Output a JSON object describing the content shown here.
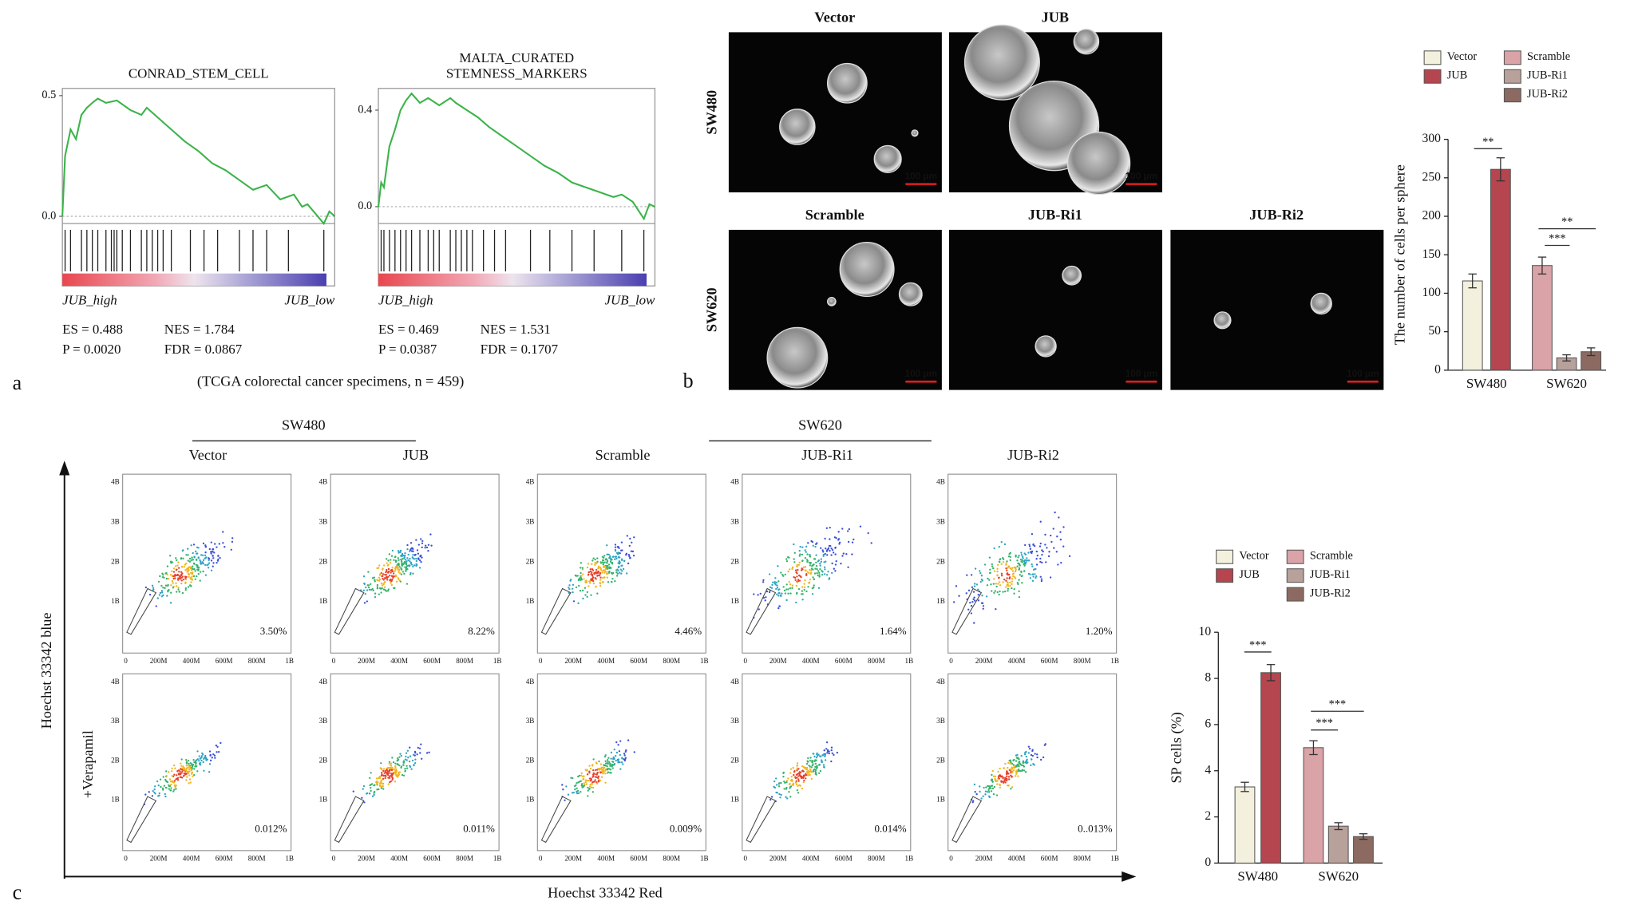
{
  "panel_labels": [
    "a",
    "b",
    "c"
  ],
  "gsea_footnote": "(TCGA colorectal cancer specimens, n = 459)",
  "chart_data": [
    {
      "type": "line",
      "title": [
        "CONRAD_STEM_CELL"
      ],
      "color": "#3cb34a",
      "x": [
        0,
        1,
        3,
        5,
        7,
        9,
        11,
        13,
        16,
        20,
        25,
        29,
        31,
        35,
        40,
        45,
        50,
        55,
        60,
        65,
        70,
        75,
        80,
        85,
        88,
        90,
        93,
        96,
        98,
        100
      ],
      "series": [
        {
          "values": [
            0,
            0.25,
            0.36,
            0.32,
            0.42,
            0.45,
            0.47,
            0.488,
            0.47,
            0.48,
            0.44,
            0.42,
            0.45,
            0.41,
            0.36,
            0.31,
            0.27,
            0.22,
            0.19,
            0.15,
            0.11,
            0.13,
            0.07,
            0.09,
            0.04,
            0.05,
            0.01,
            -0.03,
            0.02,
            0
          ]
        }
      ],
      "hits": [
        1,
        3,
        7,
        9,
        11,
        13,
        16,
        18,
        19,
        20,
        22,
        25,
        29,
        31,
        33,
        35,
        37,
        40,
        47,
        52,
        57,
        65,
        70,
        75,
        83,
        96
      ],
      "xlim": [
        0,
        100
      ],
      "ylim": [
        -0.03,
        0.53
      ],
      "yticks": [
        0.5,
        {
          "value": 0,
          "label": "0.0"
        }
      ],
      "x_labels": [
        "JUB_high",
        "JUB_low"
      ],
      "stats": [
        "ES = 0.488",
        "NES = 1.784",
        "P = 0.0020",
        "FDR = 0.0867"
      ]
    },
    {
      "type": "line",
      "title": [
        "MALTA_CURATED",
        "STEMNESS_MARKERS"
      ],
      "color": "#3cb34a",
      "x": [
        0,
        1,
        2,
        4,
        6,
        8,
        10,
        12,
        15,
        18,
        22,
        26,
        28,
        32,
        36,
        40,
        45,
        50,
        55,
        60,
        65,
        70,
        75,
        80,
        85,
        88,
        92,
        96,
        98,
        100
      ],
      "series": [
        {
          "values": [
            0,
            0.1,
            0.08,
            0.25,
            0.32,
            0.4,
            0.44,
            0.469,
            0.43,
            0.45,
            0.42,
            0.45,
            0.43,
            0.4,
            0.37,
            0.33,
            0.29,
            0.25,
            0.21,
            0.17,
            0.14,
            0.1,
            0.08,
            0.06,
            0.04,
            0.05,
            0.02,
            -0.05,
            0.01,
            0
          ]
        }
      ],
      "hits": [
        1,
        2,
        4,
        6,
        8,
        10,
        12,
        15,
        18,
        20,
        22,
        26,
        28,
        30,
        32,
        34,
        38,
        42,
        46,
        55,
        62,
        70,
        78,
        88,
        96
      ],
      "xlim": [
        0,
        100
      ],
      "ylim": [
        -0.07,
        0.49
      ],
      "yticks": [
        0.4,
        {
          "value": 0,
          "label": "0.0"
        }
      ],
      "x_labels": [
        "JUB_high",
        "JUB_low"
      ],
      "stats": [
        "ES = 0.469",
        "NES = 1.531",
        "P = 0.0387",
        "FDR = 0.1707"
      ]
    },
    {
      "type": "bar",
      "y_label": "The number of cells per sphere",
      "categories": [
        "SW480",
        "SW620"
      ],
      "ylim": [
        0,
        300
      ],
      "yticks": [
        0,
        50,
        100,
        150,
        200,
        250,
        300
      ],
      "series": [
        {
          "name": "Vector",
          "color": "#f3f0de",
          "values": [
            116,
            null
          ],
          "errors": [
            9,
            null
          ]
        },
        {
          "name": "JUB",
          "color": "#b5454f",
          "values": [
            261,
            null
          ],
          "errors": [
            15,
            null
          ]
        },
        {
          "name": "Scramble",
          "color": "#d9a3a7",
          "values": [
            null,
            136
          ],
          "errors": [
            null,
            11
          ]
        },
        {
          "name": "JUB-Ri1",
          "color": "#b8a09b",
          "values": [
            null,
            16
          ],
          "errors": [
            null,
            4
          ]
        },
        {
          "name": "JUB-Ri2",
          "color": "#8c6a62",
          "values": [
            null,
            24
          ],
          "errors": [
            null,
            5
          ]
        }
      ],
      "annotations": [
        "**",
        "***",
        "**"
      ]
    },
    {
      "type": "bar",
      "y_label": "SP cells (%)",
      "categories": [
        "SW480",
        "SW620"
      ],
      "ylim": [
        0,
        10
      ],
      "yticks": [
        0,
        2,
        4,
        6,
        8,
        10
      ],
      "series": [
        {
          "name": "Vector",
          "color": "#f3f0de",
          "values": [
            3.3,
            null
          ],
          "errors": [
            0.2,
            null
          ]
        },
        {
          "name": "JUB",
          "color": "#b5454f",
          "values": [
            8.25,
            null
          ],
          "errors": [
            0.35,
            null
          ]
        },
        {
          "name": "Scramble",
          "color": "#d9a3a7",
          "values": [
            null,
            5.0
          ],
          "errors": [
            null,
            0.3
          ]
        },
        {
          "name": "JUB-Ri1",
          "color": "#b8a09b",
          "values": [
            null,
            1.6
          ],
          "errors": [
            null,
            0.15
          ]
        },
        {
          "name": "JUB-Ri2",
          "color": "#8c6a62",
          "values": [
            null,
            1.15
          ],
          "errors": [
            null,
            0.12
          ]
        }
      ],
      "annotations": [
        "***",
        "***",
        "***"
      ]
    }
  ],
  "spheres": {
    "rows": [
      "SW480",
      "SW620"
    ],
    "top_titles": [
      "Vector",
      "JUB"
    ],
    "bottom_titles": [
      "Scramble",
      "JUB-Ri1",
      "JUB-Ri2"
    ],
    "scale_bar": "100 μm"
  },
  "flow": {
    "groups": [
      "SW480",
      "SW620"
    ],
    "columns": [
      "Vector",
      "JUB",
      "Scramble",
      "JUB-Ri1",
      "JUB-Ri2"
    ],
    "row_label": "+Verapamil",
    "y_axis": "Hoechst 33342 blue",
    "x_axis": "Hoechst 33342 Red",
    "y_ticks": [
      "4B",
      "3B",
      "2B",
      "1B"
    ],
    "x_ticks": [
      "0",
      "200M",
      "400M",
      "600M",
      "800M",
      "1B"
    ],
    "top_percent": [
      "3.50%",
      "8.22%",
      "4.46%",
      "1.64%",
      "1.20%"
    ],
    "bottom_percent": [
      "0.012%",
      "0.011%",
      "0.009%",
      "0.014%",
      "0..013%"
    ]
  }
}
